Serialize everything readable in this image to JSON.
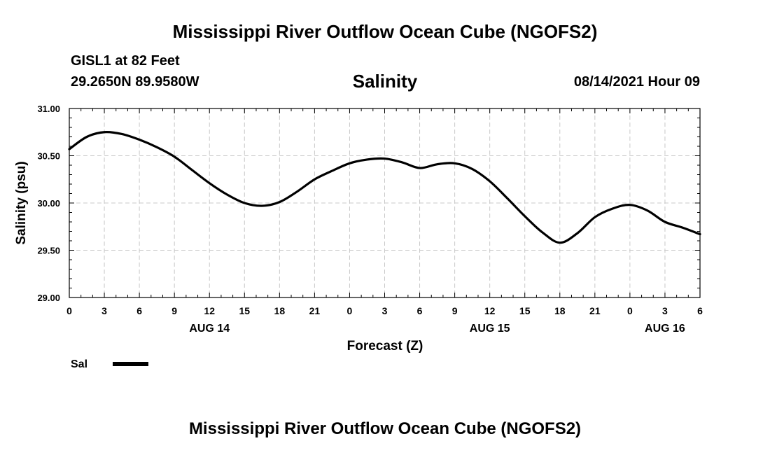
{
  "header": {
    "title_top": "Mississippi River Outflow Ocean Cube (NGOFS2)",
    "station_name": "GISL1 at 82 Feet",
    "station_coords": "29.2650N  89.9580W",
    "variable_title": "Salinity",
    "run_time": "08/14/2021 Hour 09"
  },
  "legend": {
    "label": "Sal",
    "color": "#000000"
  },
  "footer": {
    "title_bottom": "Mississippi River Outflow Ocean Cube (NGOFS2)"
  },
  "chart_data": {
    "type": "line",
    "title": "Salinity",
    "xlabel": "Forecast (Z)",
    "ylabel": "Salinity (psu)",
    "xlim": [
      0,
      54
    ],
    "ylim": [
      29.0,
      31.0
    ],
    "grid": true,
    "x_tick_values": [
      0,
      3,
      6,
      9,
      12,
      15,
      18,
      21,
      24,
      27,
      30,
      33,
      36,
      39,
      42,
      45,
      48,
      51,
      54
    ],
    "x_tick_labels": [
      "0",
      "3",
      "6",
      "9",
      "12",
      "15",
      "18",
      "21",
      "0",
      "3",
      "6",
      "9",
      "12",
      "15",
      "18",
      "21",
      "0",
      "3",
      "6"
    ],
    "y_tick_values": [
      29.0,
      29.5,
      30.0,
      30.5,
      31.0
    ],
    "y_tick_labels": [
      "29.00",
      "29.50",
      "30.00",
      "30.50",
      "31.00"
    ],
    "date_labels": [
      {
        "x": 12,
        "text": "AUG 14"
      },
      {
        "x": 36,
        "text": "AUG 15"
      },
      {
        "x": 51,
        "text": "AUG 16"
      }
    ],
    "series": [
      {
        "name": "Sal",
        "x": [
          0,
          1.5,
          3,
          4.5,
          6,
          7.5,
          9,
          10.5,
          12,
          13.5,
          15,
          16.5,
          18,
          19.5,
          21,
          22.5,
          24,
          25.5,
          27,
          28.5,
          30,
          31.5,
          33,
          34.5,
          36,
          37.5,
          39,
          40.5,
          42,
          43.5,
          45,
          46.5,
          48,
          49.5,
          51,
          52.5,
          54
        ],
        "values": [
          30.57,
          30.7,
          30.75,
          30.73,
          30.67,
          30.59,
          30.49,
          30.35,
          30.21,
          30.09,
          30.0,
          29.97,
          30.01,
          30.12,
          30.25,
          30.34,
          30.42,
          30.46,
          30.47,
          30.43,
          30.37,
          30.41,
          30.42,
          30.36,
          30.23,
          30.05,
          29.86,
          29.69,
          29.58,
          29.68,
          29.85,
          29.94,
          29.98,
          29.92,
          29.8,
          29.74,
          29.67
        ]
      }
    ]
  }
}
